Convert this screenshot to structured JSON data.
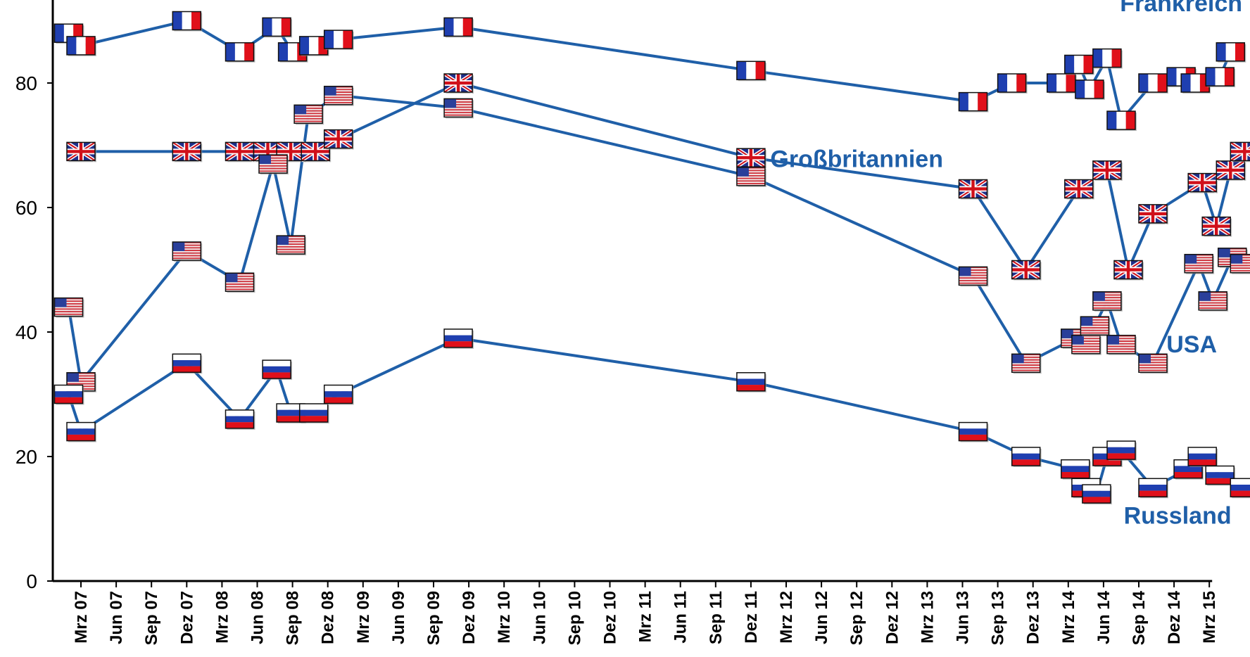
{
  "chart_data": {
    "type": "line",
    "title": "",
    "xlabel": "",
    "ylabel": "",
    "ylim": [
      0,
      90
    ],
    "yticks": [
      0,
      20,
      40,
      60,
      80
    ],
    "grid": false,
    "legend": "inline labels",
    "categories": [
      "Mrz 07",
      "Jun 07",
      "Sep 07",
      "Dez 07",
      "Mrz 08",
      "Jun 08",
      "Sep 08",
      "Dez 08",
      "Mrz 09",
      "Jun 09",
      "Sep 09",
      "Dez 09",
      "Mrz 10",
      "Jun 10",
      "Sep 10",
      "Dez 10",
      "Mrz 11",
      "Jun 11",
      "Sep 11",
      "Dez 11",
      "Mrz 12",
      "Jun 12",
      "Sep 12",
      "Dez 12",
      "Mrz 13",
      "Jun 13",
      "Sep 13",
      "Dez 13",
      "Mrz 14",
      "Jun 14",
      "Sep 14",
      "Dez 14",
      "Mrz 15"
    ],
    "series": [
      {
        "name": "Frankreich",
        "color": "#1f5fa8",
        "flag": "france-flag",
        "end_label": "85",
        "label_pos": [
          31.2,
          91.5
        ],
        "points": [
          [
            -0.35,
            88
          ],
          [
            0,
            86
          ],
          [
            3.0,
            90
          ],
          [
            4.5,
            85
          ],
          [
            5.55,
            89
          ],
          [
            6.0,
            85
          ],
          [
            6.6,
            86
          ],
          [
            7.3,
            87
          ],
          [
            10.7,
            89
          ],
          [
            19.0,
            82
          ],
          [
            25.3,
            77
          ],
          [
            26.4,
            80
          ],
          [
            27.8,
            80
          ],
          [
            28.3,
            83
          ],
          [
            28.6,
            79
          ],
          [
            29.1,
            84
          ],
          [
            29.5,
            74
          ],
          [
            30.4,
            80
          ],
          [
            31.2,
            81
          ],
          [
            31.6,
            80
          ],
          [
            32.3,
            81
          ],
          [
            32.6,
            85
          ]
        ]
      },
      {
        "name": "Großbritannien",
        "color": "#1f5fa8",
        "flag": "uk-flag",
        "end_label": "69",
        "label_pos": [
          22.0,
          66.5
        ],
        "points": [
          [
            0,
            69
          ],
          [
            3.0,
            69
          ],
          [
            4.5,
            69
          ],
          [
            5.3,
            69
          ],
          [
            5.95,
            69
          ],
          [
            6.65,
            69
          ],
          [
            7.3,
            71
          ],
          [
            10.7,
            80
          ],
          [
            19.0,
            68
          ],
          [
            25.3,
            63
          ],
          [
            26.8,
            50
          ],
          [
            28.3,
            63
          ],
          [
            29.1,
            66
          ],
          [
            29.7,
            50
          ],
          [
            30.4,
            59
          ],
          [
            31.8,
            64
          ],
          [
            32.2,
            57
          ],
          [
            32.6,
            66
          ],
          [
            33.0,
            69
          ]
        ]
      },
      {
        "name": "USA",
        "color": "#1f5fa8",
        "flag": "usa-flag",
        "end_label": "51",
        "label_pos": [
          31.5,
          36.7
        ],
        "points": [
          [
            -0.35,
            44
          ],
          [
            0,
            32
          ],
          [
            3.0,
            53
          ],
          [
            4.5,
            48
          ],
          [
            5.45,
            67
          ],
          [
            5.95,
            54
          ],
          [
            6.45,
            75
          ],
          [
            7.3,
            78
          ],
          [
            10.7,
            76
          ],
          [
            19.0,
            65
          ],
          [
            25.3,
            49
          ],
          [
            26.8,
            35
          ],
          [
            28.2,
            39
          ],
          [
            28.5,
            38
          ],
          [
            28.75,
            41
          ],
          [
            29.1,
            45
          ],
          [
            29.5,
            38
          ],
          [
            30.4,
            35
          ],
          [
            31.7,
            51
          ],
          [
            32.1,
            45
          ],
          [
            32.65,
            52
          ],
          [
            33.0,
            51
          ]
        ]
      },
      {
        "name": "Russland",
        "color": "#1f5fa8",
        "flag": "russia-flag",
        "end_label": "15",
        "label_pos": [
          31.1,
          9.2
        ],
        "points": [
          [
            -0.35,
            30
          ],
          [
            0,
            24
          ],
          [
            3.0,
            35
          ],
          [
            4.5,
            26
          ],
          [
            5.55,
            34
          ],
          [
            5.95,
            27
          ],
          [
            6.6,
            27
          ],
          [
            7.3,
            30
          ],
          [
            10.7,
            39
          ],
          [
            19.0,
            32
          ],
          [
            25.3,
            24
          ],
          [
            26.8,
            20
          ],
          [
            28.2,
            18
          ],
          [
            28.5,
            15
          ],
          [
            28.8,
            14
          ],
          [
            29.1,
            20
          ],
          [
            29.5,
            21
          ],
          [
            30.4,
            15
          ],
          [
            31.4,
            18
          ],
          [
            31.8,
            20
          ],
          [
            32.3,
            17
          ],
          [
            33.0,
            15
          ]
        ]
      }
    ]
  }
}
